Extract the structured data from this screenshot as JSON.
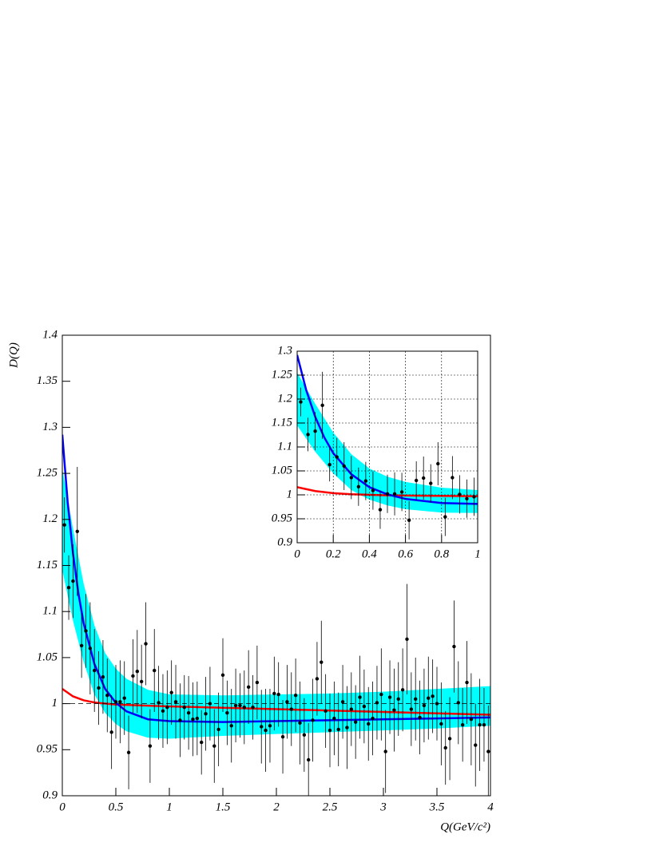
{
  "chart_data": [
    {
      "type": "scatter",
      "ylabel": "D(Q)",
      "xlabel": "Q(GeV/c²)",
      "xlim": [
        0,
        4
      ],
      "ylim": [
        0.9,
        1.4
      ],
      "xticks": [
        0,
        0.5,
        1,
        1.5,
        2,
        2.5,
        3,
        3.5,
        4
      ],
      "yticks": [
        0.9,
        0.95,
        1,
        1.05,
        1.1,
        1.15,
        1.2,
        1.25,
        1.3,
        1.35,
        1.4
      ],
      "reference_line": 1,
      "color": "#000000",
      "x": [
        0.02,
        0.06,
        0.1,
        0.14,
        0.18,
        0.22,
        0.26,
        0.3,
        0.34,
        0.38,
        0.42,
        0.46,
        0.5,
        0.54,
        0.58,
        0.62,
        0.66,
        0.7,
        0.74,
        0.78,
        0.82,
        0.86,
        0.9,
        0.94,
        0.98,
        1.02,
        1.06,
        1.1,
        1.14,
        1.18,
        1.22,
        1.26,
        1.3,
        1.34,
        1.38,
        1.42,
        1.46,
        1.5,
        1.54,
        1.58,
        1.62,
        1.66,
        1.7,
        1.74,
        1.78,
        1.82,
        1.86,
        1.9,
        1.94,
        1.98,
        2.02,
        2.06,
        2.1,
        2.14,
        2.18,
        2.22,
        2.26,
        2.3,
        2.34,
        2.38,
        2.42,
        2.46,
        2.5,
        2.54,
        2.58,
        2.62,
        2.66,
        2.7,
        2.74,
        2.78,
        2.82,
        2.86,
        2.9,
        2.94,
        2.98,
        3.02,
        3.06,
        3.1,
        3.14,
        3.18,
        3.22,
        3.26,
        3.3,
        3.34,
        3.38,
        3.42,
        3.46,
        3.5,
        3.54,
        3.58,
        3.62,
        3.66,
        3.7,
        3.74,
        3.78,
        3.82,
        3.86,
        3.9,
        3.94,
        3.98
      ],
      "values": [
        1.194,
        1.126,
        1.133,
        1.187,
        1.063,
        1.079,
        1.06,
        1.036,
        1.017,
        1.029,
        1.009,
        0.969,
        1.002,
        1.002,
        1.006,
        0.947,
        1.03,
        1.035,
        1.024,
        1.065,
        0.954,
        1.036,
        1.001,
        0.992,
        0.996,
        1.012,
        1.002,
        0.982,
        0.996,
        0.99,
        0.983,
        0.984,
        0.958,
        0.989,
        1.0,
        0.954,
        0.972,
        1.031,
        0.99,
        0.976,
        0.998,
        0.998,
        0.996,
        1.018,
        0.996,
        1.023,
        0.975,
        0.971,
        0.976,
        1.011,
        1.01,
        0.964,
        1.002,
        0.994,
        1.009,
        0.979,
        0.966,
        0.939,
        0.982,
        1.027,
        1.045,
        0.992,
        0.971,
        0.984,
        0.972,
        1.002,
        0.974,
        0.994,
        0.98,
        1.007,
        0.997,
        0.978,
        0.984,
        1.001,
        1.01,
        0.948,
        1.007,
        0.993,
        1.005,
        1.015,
        1.07,
        0.994,
        1.005,
        0.985,
        0.998,
        1.006,
        1.008,
        1.0,
        0.978,
        0.952,
        0.962,
        1.062,
        1.001,
        0.977,
        1.023,
        0.983,
        0.955,
        0.977,
        0.977,
        0.948
      ],
      "errors": [
        0.03,
        0.035,
        0.04,
        0.07,
        0.035,
        0.04,
        0.05,
        0.045,
        0.04,
        0.04,
        0.04,
        0.04,
        0.04,
        0.045,
        0.04,
        0.04,
        0.04,
        0.045,
        0.04,
        0.045,
        0.04,
        0.045,
        0.04,
        0.04,
        0.04,
        0.035,
        0.04,
        0.04,
        0.035,
        0.04,
        0.04,
        0.04,
        0.035,
        0.04,
        0.04,
        0.04,
        0.04,
        0.04,
        0.035,
        0.04,
        0.04,
        0.035,
        0.04,
        0.04,
        0.035,
        0.04,
        0.04,
        0.045,
        0.04,
        0.04,
        0.035,
        0.04,
        0.04,
        0.04,
        0.04,
        0.045,
        0.04,
        0.04,
        0.045,
        0.04,
        0.045,
        0.04,
        0.04,
        0.04,
        0.04,
        0.04,
        0.045,
        0.04,
        0.04,
        0.045,
        0.04,
        0.04,
        0.04,
        0.04,
        0.05,
        0.045,
        0.04,
        0.045,
        0.04,
        0.045,
        0.06,
        0.04,
        0.045,
        0.04,
        0.04,
        0.045,
        0.04,
        0.04,
        0.045,
        0.04,
        0.045,
        0.05,
        0.045,
        0.04,
        0.045,
        0.05,
        0.045,
        0.05,
        0.04,
        0.05
      ],
      "band": {
        "color": "#00ffff",
        "x": [
          0,
          0.1,
          0.2,
          0.3,
          0.4,
          0.5,
          0.6,
          0.8,
          1,
          1.5,
          2,
          2.5,
          3,
          3.5,
          4
        ],
        "upper": [
          1.255,
          1.19,
          1.13,
          1.085,
          1.055,
          1.038,
          1.027,
          1.015,
          1.01,
          1.009,
          1.01,
          1.011,
          1.013,
          1.016,
          1.019
        ],
        "lower": [
          1.145,
          1.09,
          1.045,
          1.01,
          0.99,
          0.978,
          0.97,
          0.963,
          0.962,
          0.965,
          0.967,
          0.969,
          0.971,
          0.973,
          0.976
        ]
      },
      "fits": [
        {
          "color": "#ff0000",
          "x": [
            0,
            0.1,
            0.2,
            0.3,
            0.5,
            1,
            2,
            3,
            4
          ],
          "values": [
            1.016,
            1.0079,
            1.0036,
            1.0013,
            0.999,
            0.997,
            0.994,
            0.991,
            0.988
          ]
        },
        {
          "color": "#0000ff",
          "x": [
            0,
            0.05,
            0.1,
            0.15,
            0.2,
            0.3,
            0.4,
            0.5,
            0.6,
            0.8,
            1,
            1.5,
            2,
            2.5,
            3,
            3.5,
            4
          ],
          "values": [
            1.292,
            1.219,
            1.163,
            1.12,
            1.087,
            1.043,
            1.016,
            1.001,
            0.9916,
            0.983,
            0.981,
            0.98,
            0.981,
            0.982,
            0.983,
            0.984,
            0.985
          ]
        }
      ]
    },
    {
      "type": "inset",
      "xlim": [
        0,
        1
      ],
      "ylim": [
        0.9,
        1.3
      ],
      "xticks": [
        0,
        0.2,
        0.4,
        0.6,
        0.8,
        1
      ],
      "yticks": [
        0.9,
        0.95,
        1,
        1.05,
        1.1,
        1.15,
        1.2,
        1.25,
        1.3
      ],
      "grid": true
    }
  ]
}
